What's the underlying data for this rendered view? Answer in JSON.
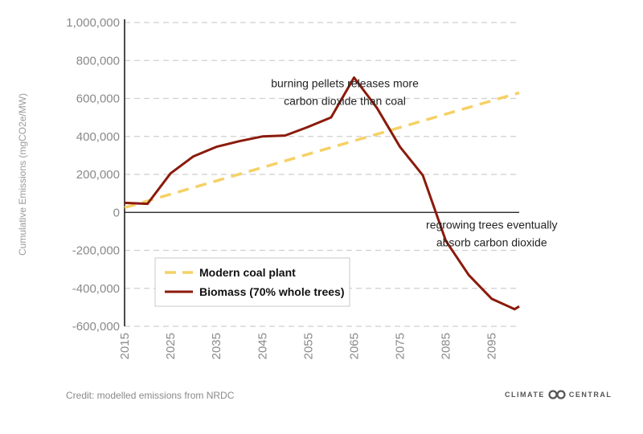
{
  "chart_data": {
    "type": "line",
    "ylabel": "Cumulative Emissions (mgCO2e/MW)",
    "ylim": [
      -600000,
      1000000
    ],
    "y_ticks": [
      1000000,
      800000,
      600000,
      400000,
      200000,
      0,
      -200000,
      -400000,
      -600000
    ],
    "y_tick_labels": [
      "1,000,000",
      "800,000",
      "600,000",
      "400,000",
      "200,000",
      "0",
      "-200,000",
      "-400,000",
      "-600,000"
    ],
    "x_ticks": [
      2015,
      2025,
      2035,
      2045,
      2055,
      2065,
      2075,
      2085,
      2095
    ],
    "x_tick_labels": [
      "2015",
      "2025",
      "2035",
      "2045",
      "2055",
      "2065",
      "2075",
      "2085",
      "2095"
    ],
    "xlim": [
      2015,
      2101
    ],
    "grid": "horizontal dashed",
    "series": [
      {
        "name": "Modern coal plant",
        "color": "#f5d166",
        "style": "dashed",
        "x": [
          2015,
          2101
        ],
        "y": [
          25000,
          630000
        ]
      },
      {
        "name": "Biomass (70% whole trees)",
        "color": "#8b1a0c",
        "style": "solid",
        "x": [
          2015,
          2020,
          2025,
          2030,
          2035,
          2040,
          2045,
          2050,
          2055,
          2060,
          2065,
          2070,
          2075,
          2080,
          2085,
          2090,
          2095,
          2100,
          2101
        ],
        "y": [
          50000,
          45000,
          205000,
          295000,
          345000,
          375000,
          400000,
          405000,
          450000,
          500000,
          710000,
          550000,
          345000,
          195000,
          -150000,
          -330000,
          -455000,
          -510000,
          -495000
        ]
      }
    ],
    "annotations": [
      {
        "lines": [
          "burning pellets releases more",
          "carbon dioxide than coal"
        ],
        "x": 2063,
        "y": 660000
      },
      {
        "lines": [
          "regrowing trees eventually",
          "absorb carbon dioxide"
        ],
        "x": 2095,
        "y": -85000
      }
    ],
    "legend": {
      "placement": "bottom-left inside plot"
    }
  },
  "footer": {
    "credit": "Credit: modelled emissions from NRDC",
    "logo_left": "CLIMATE",
    "logo_right": "CENTRAL"
  }
}
